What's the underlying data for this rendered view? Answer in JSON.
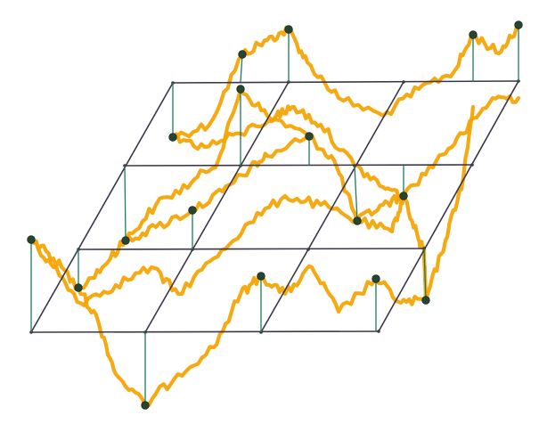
{
  "diagram": {
    "kind": "brownian-sheet-perspective",
    "grid": {
      "rows": 3,
      "cols": 3
    },
    "colors": {
      "grid": "#3b3648",
      "stem": "#1f7a5c",
      "curve": "#f4a300",
      "node": "#27452f"
    }
  }
}
